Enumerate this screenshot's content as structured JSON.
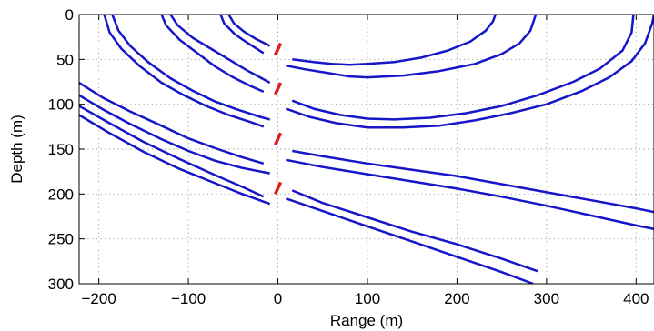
{
  "chart_data": {
    "type": "line",
    "title": "",
    "xlabel": "Range (m)",
    "ylabel": "Depth (m)",
    "xlim": [
      -222,
      420
    ],
    "ylim": [
      0,
      300
    ],
    "y_reversed": true,
    "grid": true,
    "xticks": [
      "−200",
      "−100",
      "0",
      "100",
      "200",
      "300",
      "400"
    ],
    "xtick_values": [
      -200,
      -100,
      0,
      100,
      200,
      300,
      400
    ],
    "yticks": [
      "0",
      "50",
      "100",
      "150",
      "200",
      "250",
      "300"
    ],
    "ytick_values": [
      0,
      50,
      100,
      150,
      200,
      250,
      300
    ],
    "colors": {
      "curves": "#1616c8",
      "markers": "#e21a1a",
      "grid": "#9a9a9a"
    },
    "series": [
      {
        "group": "left",
        "points": [
          [
            -194,
            0
          ],
          [
            -188,
            20
          ],
          [
            -175,
            38
          ],
          [
            -155,
            57
          ],
          [
            -130,
            76
          ],
          [
            -105,
            90
          ],
          [
            -80,
            102
          ],
          [
            -55,
            112
          ],
          [
            -30,
            120
          ],
          [
            -16,
            125
          ]
        ]
      },
      {
        "group": "left",
        "points": [
          [
            -185,
            0
          ],
          [
            -178,
            18
          ],
          [
            -165,
            35
          ],
          [
            -145,
            53
          ],
          [
            -120,
            71
          ],
          [
            -95,
            85
          ],
          [
            -70,
            97
          ],
          [
            -45,
            106
          ],
          [
            -20,
            114
          ],
          [
            -9,
            117
          ]
        ]
      },
      {
        "group": "left",
        "points": [
          [
            -130,
            0
          ],
          [
            -125,
            12
          ],
          [
            -110,
            28
          ],
          [
            -90,
            43
          ],
          [
            -70,
            58
          ],
          [
            -50,
            70
          ],
          [
            -30,
            80
          ],
          [
            -16,
            86
          ]
        ]
      },
      {
        "group": "left",
        "points": [
          [
            -120,
            0
          ],
          [
            -112,
            12
          ],
          [
            -95,
            26
          ],
          [
            -75,
            38
          ],
          [
            -55,
            50
          ],
          [
            -35,
            62
          ],
          [
            -20,
            70
          ],
          [
            -9,
            76
          ]
        ]
      },
      {
        "group": "left",
        "points": [
          [
            -64,
            0
          ],
          [
            -60,
            10
          ],
          [
            -48,
            22
          ],
          [
            -35,
            31
          ],
          [
            -16,
            43
          ]
        ]
      },
      {
        "group": "left",
        "points": [
          [
            -55,
            0
          ],
          [
            -49,
            10
          ],
          [
            -38,
            19
          ],
          [
            -25,
            27
          ],
          [
            -9,
            35
          ]
        ]
      },
      {
        "group": "left",
        "points": [
          [
            -222,
            76
          ],
          [
            -195,
            93
          ],
          [
            -165,
            108
          ],
          [
            -130,
            124
          ],
          [
            -100,
            138
          ],
          [
            -70,
            149
          ],
          [
            -40,
            159
          ],
          [
            -16,
            166
          ]
        ]
      },
      {
        "group": "left",
        "points": [
          [
            -222,
            90
          ],
          [
            -195,
            106
          ],
          [
            -165,
            122
          ],
          [
            -130,
            139
          ],
          [
            -100,
            152
          ],
          [
            -70,
            163
          ],
          [
            -40,
            171
          ],
          [
            -9,
            177
          ]
        ]
      },
      {
        "group": "left",
        "points": [
          [
            -222,
            102
          ],
          [
            -190,
            120
          ],
          [
            -150,
            142
          ],
          [
            -110,
            161
          ],
          [
            -70,
            179
          ],
          [
            -40,
            192
          ],
          [
            -16,
            203
          ]
        ]
      },
      {
        "group": "left",
        "points": [
          [
            -222,
            112
          ],
          [
            -190,
            131
          ],
          [
            -150,
            153
          ],
          [
            -110,
            172
          ],
          [
            -70,
            188
          ],
          [
            -40,
            200
          ],
          [
            -9,
            211
          ]
        ]
      },
      {
        "group": "right",
        "points": [
          [
            16,
            50
          ],
          [
            40,
            53
          ],
          [
            60,
            55
          ],
          [
            80,
            56
          ],
          [
            100,
            55
          ],
          [
            130,
            53
          ],
          [
            160,
            48
          ],
          [
            190,
            40
          ],
          [
            215,
            30
          ],
          [
            232,
            18
          ],
          [
            240,
            8
          ],
          [
            243,
            0
          ]
        ]
      },
      {
        "group": "right",
        "points": [
          [
            9,
            57
          ],
          [
            30,
            61
          ],
          [
            55,
            65
          ],
          [
            80,
            69
          ],
          [
            100,
            70
          ],
          [
            140,
            68
          ],
          [
            180,
            63
          ],
          [
            220,
            55
          ],
          [
            250,
            44
          ],
          [
            270,
            32
          ],
          [
            282,
            18
          ],
          [
            288,
            0
          ]
        ]
      },
      {
        "group": "right",
        "points": [
          [
            16,
            96
          ],
          [
            40,
            105
          ],
          [
            70,
            112
          ],
          [
            100,
            116
          ],
          [
            130,
            117
          ],
          [
            170,
            115
          ],
          [
            210,
            110
          ],
          [
            250,
            102
          ],
          [
            290,
            90
          ],
          [
            330,
            75
          ],
          [
            360,
            60
          ],
          [
            385,
            40
          ],
          [
            395,
            20
          ],
          [
            397,
            0
          ]
        ]
      },
      {
        "group": "right",
        "points": [
          [
            9,
            105
          ],
          [
            35,
            114
          ],
          [
            65,
            121
          ],
          [
            100,
            126
          ],
          [
            140,
            126
          ],
          [
            180,
            124
          ],
          [
            220,
            118
          ],
          [
            260,
            110
          ],
          [
            300,
            100
          ],
          [
            340,
            85
          ],
          [
            370,
            70
          ],
          [
            395,
            52
          ],
          [
            410,
            32
          ],
          [
            418,
            10
          ],
          [
            420,
            0
          ]
        ]
      },
      {
        "group": "right",
        "points": [
          [
            16,
            152
          ],
          [
            50,
            158
          ],
          [
            100,
            166
          ],
          [
            150,
            173
          ],
          [
            200,
            180
          ],
          [
            250,
            189
          ],
          [
            300,
            198
          ],
          [
            350,
            207
          ],
          [
            400,
            216
          ],
          [
            420,
            220
          ]
        ]
      },
      {
        "group": "right",
        "points": [
          [
            9,
            162
          ],
          [
            50,
            170
          ],
          [
            100,
            178
          ],
          [
            150,
            186
          ],
          [
            200,
            194
          ],
          [
            250,
            203
          ],
          [
            300,
            213
          ],
          [
            350,
            224
          ],
          [
            400,
            235
          ],
          [
            420,
            239
          ]
        ]
      },
      {
        "group": "right",
        "points": [
          [
            16,
            196
          ],
          [
            50,
            210
          ],
          [
            100,
            226
          ],
          [
            150,
            242
          ],
          [
            200,
            256
          ],
          [
            250,
            272
          ],
          [
            290,
            286
          ]
        ]
      },
      {
        "group": "right",
        "points": [
          [
            9,
            205
          ],
          [
            50,
            219
          ],
          [
            100,
            236
          ],
          [
            150,
            253
          ],
          [
            200,
            270
          ],
          [
            250,
            287
          ],
          [
            285,
            300
          ]
        ]
      }
    ],
    "markers": [
      {
        "points": [
          [
            3,
            32
          ],
          [
            -3,
            45
          ]
        ]
      },
      {
        "points": [
          [
            3,
            76
          ],
          [
            -3,
            89
          ]
        ]
      },
      {
        "points": [
          [
            3,
            132
          ],
          [
            -3,
            145
          ]
        ]
      },
      {
        "points": [
          [
            3,
            187
          ],
          [
            -3,
            200
          ]
        ]
      }
    ]
  }
}
